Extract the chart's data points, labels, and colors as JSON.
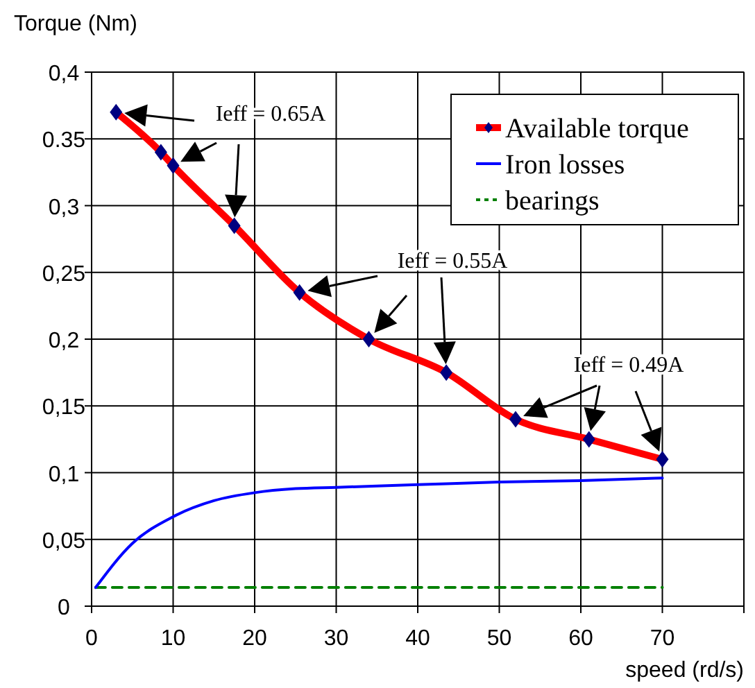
{
  "chart_data": {
    "type": "line",
    "ylabel": "Torque (Nm)",
    "xlabel": "speed (rd/s)",
    "xlim": [
      0,
      80
    ],
    "xticks": [
      0,
      10,
      20,
      30,
      40,
      50,
      60,
      70,
      {
        "value": 80,
        "label": null
      }
    ],
    "ylim": [
      0,
      0.4
    ],
    "yticks": [
      {
        "value": 0,
        "label": "0"
      },
      {
        "value": 0.05,
        "label": "0,05"
      },
      {
        "value": 0.1,
        "label": "0,1"
      },
      {
        "value": 0.15,
        "label": "0,15"
      },
      {
        "value": 0.2,
        "label": "0,2"
      },
      {
        "value": 0.25,
        "label": "0,25"
      },
      {
        "value": 0.3,
        "label": "0,3"
      },
      {
        "value": 0.35,
        "label": "0.35"
      },
      {
        "value": 0.4,
        "label": "0,4"
      }
    ],
    "grid": true,
    "legend": "top right",
    "series": [
      {
        "name": "Available torque",
        "color": "#ff0000",
        "marker": "diamond",
        "line_style": "solid",
        "x": [
          3,
          8.5,
          10,
          17.5,
          25.5,
          34,
          43.5,
          52,
          61,
          70
        ],
        "values": [
          0.37,
          0.34,
          0.33,
          0.285,
          0.235,
          0.2,
          0.175,
          0.14,
          0.125,
          0.11
        ]
      },
      {
        "name": "Iron losses",
        "color": "#0000ff",
        "marker": "none",
        "line_style": "solid",
        "x": [
          0.5,
          5,
          10,
          15,
          20,
          25,
          30,
          40,
          50,
          60,
          70
        ],
        "values": [
          0.014,
          0.047,
          0.067,
          0.079,
          0.085,
          0.088,
          0.089,
          0.091,
          0.093,
          0.094,
          0.096
        ]
      },
      {
        "name": "bearings",
        "color": "#008000",
        "marker": "none",
        "line_style": "dashed",
        "x": [
          0.5,
          70
        ],
        "values": [
          0.014,
          0.014
        ]
      }
    ],
    "annotations": [
      "Ieff = 0.65A",
      "Ieff = 0.55A",
      "Ieff = 0.49A"
    ]
  }
}
